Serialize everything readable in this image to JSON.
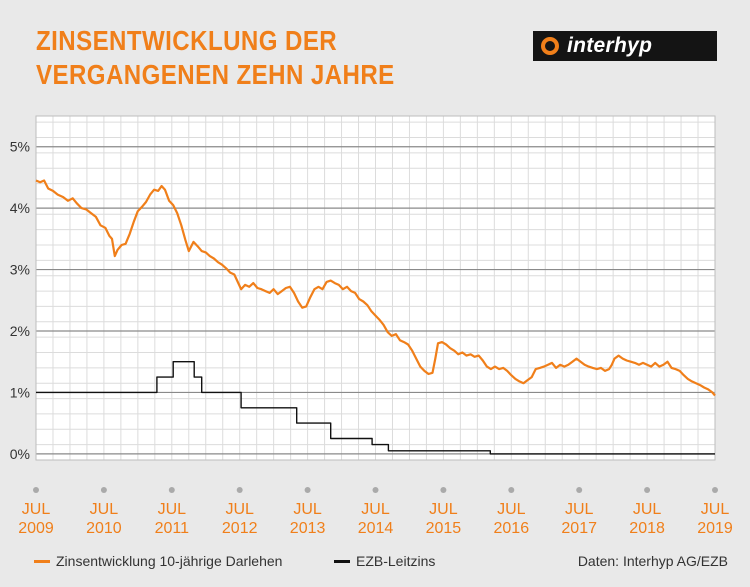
{
  "title": "ZINSENTWICKLUNG DER\nVERGANGENEN ZEHN JAHRE",
  "logo_text": "interhyp",
  "source": "Daten: Interhyp AG/EZB",
  "colors": {
    "accent": "#f07f1a",
    "ecb": "#111111",
    "background": "#e9e9e9",
    "plot_bg": "#ffffff",
    "grid_major": "#8a8a8a",
    "grid_minor": "#dcdcdc"
  },
  "chart_data": {
    "type": "line",
    "title": "ZINSENTWICKLUNG DER VERGANGENEN ZEHN JAHRE",
    "xlim": [
      2009.5,
      2019.5
    ],
    "ylim": [
      -0.1,
      5.5
    ],
    "y_ticks": [
      0,
      1,
      2,
      3,
      4,
      5
    ],
    "y_tick_labels": [
      "0%",
      "1%",
      "2%",
      "3%",
      "4%",
      "5%"
    ],
    "x_ticks": [
      {
        "x": 2009.5,
        "month": "JUL",
        "year": "2009"
      },
      {
        "x": 2010.5,
        "month": "JUL",
        "year": "2010"
      },
      {
        "x": 2011.5,
        "month": "JUL",
        "year": "2011"
      },
      {
        "x": 2012.5,
        "month": "JUL",
        "year": "2012"
      },
      {
        "x": 2013.5,
        "month": "JUL",
        "year": "2013"
      },
      {
        "x": 2014.5,
        "month": "JUL",
        "year": "2014"
      },
      {
        "x": 2015.5,
        "month": "JUL",
        "year": "2015"
      },
      {
        "x": 2016.5,
        "month": "JUL",
        "year": "2016"
      },
      {
        "x": 2017.5,
        "month": "JUL",
        "year": "2017"
      },
      {
        "x": 2018.5,
        "month": "JUL",
        "year": "2018"
      },
      {
        "x": 2019.5,
        "month": "JUL",
        "year": "2019"
      }
    ],
    "grid": true,
    "legend_position": "bottom-left",
    "series": [
      {
        "name": "Zinsentwicklung 10-jährige Darlehen",
        "color": "#f07f1a",
        "step": false,
        "points": [
          [
            2009.5,
            4.45
          ],
          [
            2009.56,
            4.42
          ],
          [
            2009.62,
            4.45
          ],
          [
            2009.68,
            4.32
          ],
          [
            2009.75,
            4.28
          ],
          [
            2009.82,
            4.22
          ],
          [
            2009.9,
            4.18
          ],
          [
            2009.97,
            4.12
          ],
          [
            2010.04,
            4.16
          ],
          [
            2010.1,
            4.08
          ],
          [
            2010.17,
            4.0
          ],
          [
            2010.24,
            3.98
          ],
          [
            2010.31,
            3.92
          ],
          [
            2010.38,
            3.86
          ],
          [
            2010.45,
            3.72
          ],
          [
            2010.52,
            3.68
          ],
          [
            2010.58,
            3.55
          ],
          [
            2010.62,
            3.5
          ],
          [
            2010.66,
            3.22
          ],
          [
            2010.7,
            3.32
          ],
          [
            2010.76,
            3.4
          ],
          [
            2010.82,
            3.42
          ],
          [
            2010.88,
            3.58
          ],
          [
            2010.94,
            3.78
          ],
          [
            2011.0,
            3.95
          ],
          [
            2011.06,
            4.02
          ],
          [
            2011.12,
            4.1
          ],
          [
            2011.18,
            4.22
          ],
          [
            2011.24,
            4.3
          ],
          [
            2011.3,
            4.28
          ],
          [
            2011.35,
            4.36
          ],
          [
            2011.4,
            4.3
          ],
          [
            2011.46,
            4.12
          ],
          [
            2011.52,
            4.05
          ],
          [
            2011.58,
            3.92
          ],
          [
            2011.64,
            3.72
          ],
          [
            2011.7,
            3.48
          ],
          [
            2011.75,
            3.3
          ],
          [
            2011.82,
            3.45
          ],
          [
            2011.88,
            3.38
          ],
          [
            2011.94,
            3.3
          ],
          [
            2012.0,
            3.28
          ],
          [
            2012.06,
            3.22
          ],
          [
            2012.12,
            3.18
          ],
          [
            2012.18,
            3.12
          ],
          [
            2012.24,
            3.08
          ],
          [
            2012.3,
            3.02
          ],
          [
            2012.36,
            2.95
          ],
          [
            2012.42,
            2.92
          ],
          [
            2012.48,
            2.78
          ],
          [
            2012.52,
            2.68
          ],
          [
            2012.58,
            2.75
          ],
          [
            2012.64,
            2.72
          ],
          [
            2012.7,
            2.78
          ],
          [
            2012.76,
            2.7
          ],
          [
            2012.82,
            2.68
          ],
          [
            2012.88,
            2.65
          ],
          [
            2012.94,
            2.62
          ],
          [
            2013.0,
            2.68
          ],
          [
            2013.06,
            2.6
          ],
          [
            2013.12,
            2.65
          ],
          [
            2013.18,
            2.7
          ],
          [
            2013.24,
            2.72
          ],
          [
            2013.3,
            2.62
          ],
          [
            2013.36,
            2.48
          ],
          [
            2013.42,
            2.38
          ],
          [
            2013.48,
            2.4
          ],
          [
            2013.54,
            2.55
          ],
          [
            2013.6,
            2.68
          ],
          [
            2013.66,
            2.72
          ],
          [
            2013.72,
            2.68
          ],
          [
            2013.78,
            2.8
          ],
          [
            2013.84,
            2.82
          ],
          [
            2013.9,
            2.78
          ],
          [
            2013.96,
            2.75
          ],
          [
            2014.02,
            2.68
          ],
          [
            2014.08,
            2.72
          ],
          [
            2014.14,
            2.65
          ],
          [
            2014.2,
            2.62
          ],
          [
            2014.26,
            2.52
          ],
          [
            2014.32,
            2.48
          ],
          [
            2014.38,
            2.42
          ],
          [
            2014.44,
            2.32
          ],
          [
            2014.5,
            2.25
          ],
          [
            2014.56,
            2.18
          ],
          [
            2014.62,
            2.1
          ],
          [
            2014.68,
            1.98
          ],
          [
            2014.74,
            1.92
          ],
          [
            2014.8,
            1.95
          ],
          [
            2014.86,
            1.85
          ],
          [
            2014.92,
            1.82
          ],
          [
            2014.98,
            1.78
          ],
          [
            2015.04,
            1.68
          ],
          [
            2015.1,
            1.55
          ],
          [
            2015.16,
            1.42
          ],
          [
            2015.22,
            1.35
          ],
          [
            2015.28,
            1.3
          ],
          [
            2015.34,
            1.32
          ],
          [
            2015.38,
            1.55
          ],
          [
            2015.42,
            1.8
          ],
          [
            2015.48,
            1.82
          ],
          [
            2015.54,
            1.78
          ],
          [
            2015.6,
            1.72
          ],
          [
            2015.66,
            1.68
          ],
          [
            2015.72,
            1.62
          ],
          [
            2015.78,
            1.65
          ],
          [
            2015.84,
            1.6
          ],
          [
            2015.9,
            1.62
          ],
          [
            2015.96,
            1.58
          ],
          [
            2016.02,
            1.6
          ],
          [
            2016.08,
            1.52
          ],
          [
            2016.14,
            1.42
          ],
          [
            2016.2,
            1.38
          ],
          [
            2016.26,
            1.42
          ],
          [
            2016.32,
            1.38
          ],
          [
            2016.38,
            1.4
          ],
          [
            2016.44,
            1.35
          ],
          [
            2016.5,
            1.28
          ],
          [
            2016.56,
            1.22
          ],
          [
            2016.62,
            1.18
          ],
          [
            2016.68,
            1.15
          ],
          [
            2016.74,
            1.2
          ],
          [
            2016.8,
            1.25
          ],
          [
            2016.86,
            1.38
          ],
          [
            2016.92,
            1.4
          ],
          [
            2016.98,
            1.42
          ],
          [
            2017.04,
            1.45
          ],
          [
            2017.1,
            1.48
          ],
          [
            2017.16,
            1.4
          ],
          [
            2017.22,
            1.45
          ],
          [
            2017.28,
            1.42
          ],
          [
            2017.34,
            1.45
          ],
          [
            2017.4,
            1.5
          ],
          [
            2017.46,
            1.55
          ],
          [
            2017.52,
            1.5
          ],
          [
            2017.58,
            1.45
          ],
          [
            2017.64,
            1.42
          ],
          [
            2017.7,
            1.4
          ],
          [
            2017.76,
            1.38
          ],
          [
            2017.82,
            1.4
          ],
          [
            2017.88,
            1.35
          ],
          [
            2017.94,
            1.38
          ],
          [
            2017.98,
            1.45
          ],
          [
            2018.02,
            1.55
          ],
          [
            2018.08,
            1.6
          ],
          [
            2018.14,
            1.55
          ],
          [
            2018.2,
            1.52
          ],
          [
            2018.26,
            1.5
          ],
          [
            2018.32,
            1.48
          ],
          [
            2018.38,
            1.45
          ],
          [
            2018.44,
            1.48
          ],
          [
            2018.5,
            1.45
          ],
          [
            2018.56,
            1.42
          ],
          [
            2018.62,
            1.48
          ],
          [
            2018.68,
            1.42
          ],
          [
            2018.74,
            1.45
          ],
          [
            2018.8,
            1.5
          ],
          [
            2018.86,
            1.4
          ],
          [
            2018.92,
            1.38
          ],
          [
            2018.98,
            1.35
          ],
          [
            2019.04,
            1.28
          ],
          [
            2019.1,
            1.22
          ],
          [
            2019.16,
            1.18
          ],
          [
            2019.22,
            1.15
          ],
          [
            2019.28,
            1.12
          ],
          [
            2019.34,
            1.08
          ],
          [
            2019.4,
            1.05
          ],
          [
            2019.46,
            1.0
          ],
          [
            2019.5,
            0.95
          ]
        ]
      },
      {
        "name": "EZB-Leitzins",
        "color": "#111111",
        "step": true,
        "points": [
          [
            2009.5,
            1.0
          ],
          [
            2011.28,
            1.25
          ],
          [
            2011.52,
            1.5
          ],
          [
            2011.83,
            1.25
          ],
          [
            2011.94,
            1.0
          ],
          [
            2012.52,
            0.75
          ],
          [
            2013.34,
            0.5
          ],
          [
            2013.84,
            0.25
          ],
          [
            2014.45,
            0.15
          ],
          [
            2014.69,
            0.05
          ],
          [
            2016.19,
            0.0
          ],
          [
            2019.5,
            0.0
          ]
        ]
      }
    ]
  }
}
